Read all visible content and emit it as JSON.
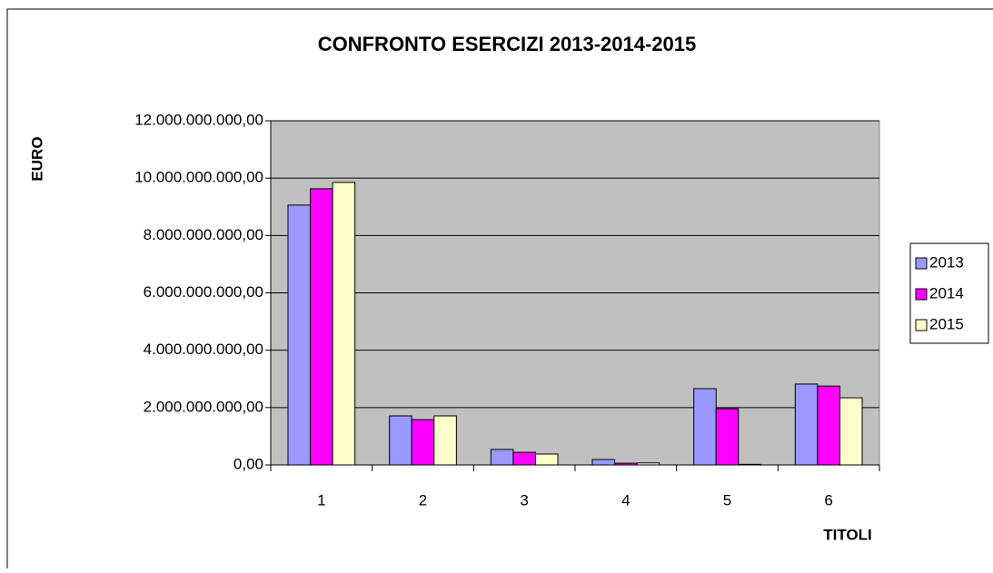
{
  "chart_data": {
    "type": "bar",
    "title": "CONFRONTO ESERCIZI 2013-2014-2015",
    "y_label": "EURO",
    "x_label": "TITOLI",
    "categories": [
      "1",
      "2",
      "3",
      "4",
      "5",
      "6"
    ],
    "series": [
      {
        "name": "2013",
        "color": "#9999ff",
        "values": [
          9060000000,
          1710000000,
          540000000,
          190000000,
          2660000000,
          2820000000
        ]
      },
      {
        "name": "2014",
        "color": "#ff00ff",
        "values": [
          9630000000,
          1580000000,
          440000000,
          60000000,
          1960000000,
          2750000000
        ]
      },
      {
        "name": "2015",
        "color": "#ffffcc",
        "values": [
          9850000000,
          1710000000,
          380000000,
          70000000,
          20000000,
          2340000000
        ]
      }
    ],
    "ylim": [
      0,
      12000000000
    ],
    "yticks": [
      {
        "value": 0,
        "label": "0,00"
      },
      {
        "value": 2000000000,
        "label": "2.000.000.000,00"
      },
      {
        "value": 4000000000,
        "label": "4.000.000.000,00"
      },
      {
        "value": 6000000000,
        "label": "6.000.000.000,00"
      },
      {
        "value": 8000000000,
        "label": "8.000.000.000,00"
      },
      {
        "value": 10000000000,
        "label": "10.000.000.000,00"
      },
      {
        "value": 12000000000,
        "label": "12.000.000.000,00"
      }
    ],
    "grid": true,
    "legend": "right",
    "plot_background": "#c0c0c0"
  }
}
